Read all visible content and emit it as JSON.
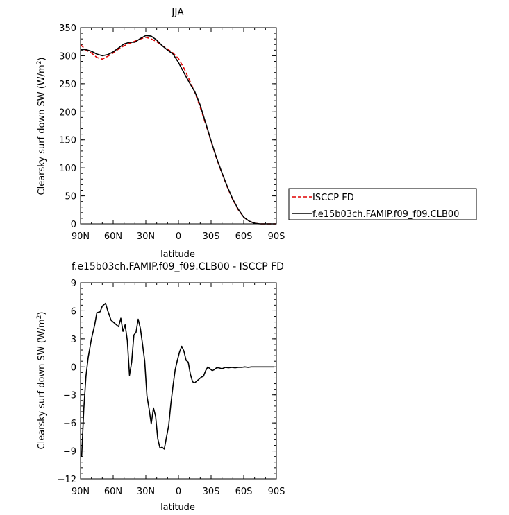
{
  "chart_data": [
    {
      "type": "line",
      "title": "JJA",
      "xlabel": "latitude",
      "ylabel": "Clearsky surf down SW (W/m",
      "ylabel_sup": "2",
      "ylabel_end": ")",
      "xlim": [
        90,
        -90
      ],
      "ylim": [
        0,
        350
      ],
      "xticks": [
        90,
        60,
        30,
        0,
        -30,
        -60,
        -90
      ],
      "xtick_labels": [
        "90N",
        "60N",
        "30N",
        "0",
        "30S",
        "60S",
        "90S"
      ],
      "yticks": [
        0,
        50,
        100,
        150,
        200,
        250,
        300,
        350
      ],
      "ytick_labels": [
        "0",
        "50",
        "100",
        "150",
        "200",
        "250",
        "300",
        "350"
      ],
      "legend_position": "right",
      "series": [
        {
          "name": "ISCCP FD",
          "color": "#e00000",
          "dash": "dashed",
          "x": [
            90,
            85,
            80,
            75,
            70,
            65,
            60,
            55,
            50,
            45,
            40,
            35,
            30,
            25,
            20,
            15,
            10,
            5,
            0,
            -5,
            -10,
            -15,
            -20,
            -25,
            -30,
            -35,
            -40,
            -45,
            -50,
            -55,
            -60,
            -65,
            -70,
            -75,
            -80,
            -85,
            -90
          ],
          "values": [
            320,
            310,
            305,
            297,
            294,
            299,
            305,
            312,
            318,
            322,
            326,
            330,
            333,
            330,
            325,
            318,
            312,
            305,
            295,
            278,
            257,
            235,
            208,
            178,
            147,
            117,
            90,
            65,
            43,
            25,
            12,
            5,
            1,
            0,
            0,
            0,
            0
          ]
        },
        {
          "name": "f.e15b03ch.FAMIP.f09_f09.CLB00",
          "color": "#000000",
          "dash": "solid",
          "x": [
            90,
            85,
            80,
            75,
            70,
            65,
            60,
            55,
            50,
            45,
            40,
            35,
            30,
            25,
            20,
            15,
            10,
            5,
            0,
            -5,
            -10,
            -15,
            -20,
            -25,
            -30,
            -35,
            -40,
            -45,
            -50,
            -55,
            -60,
            -65,
            -70,
            -75,
            -80,
            -85,
            -90
          ],
          "values": [
            311,
            311,
            308,
            303,
            300,
            302,
            307,
            314,
            321,
            324,
            324,
            331,
            336,
            335,
            328,
            318,
            310,
            303,
            288,
            270,
            252,
            236,
            212,
            180,
            148,
            118,
            91,
            66,
            44,
            26,
            12,
            5,
            1,
            0,
            0,
            0,
            0
          ]
        }
      ]
    },
    {
      "type": "line",
      "title": "f.e15b03ch.FAMIP.f09_f09.CLB00 - ISCCP FD",
      "xlabel": "latitude",
      "ylabel": "Clearsky surf down SW (W/m",
      "ylabel_sup": "2",
      "ylabel_end": ")",
      "xlim": [
        90,
        -90
      ],
      "ylim": [
        -12,
        9
      ],
      "xticks": [
        90,
        60,
        30,
        0,
        -30,
        -60,
        -90
      ],
      "xtick_labels": [
        "90N",
        "60N",
        "30N",
        "0",
        "30S",
        "60S",
        "90S"
      ],
      "yticks": [
        9,
        6,
        3,
        0,
        -3,
        -6,
        -9,
        -12
      ],
      "ytick_labels": [
        "9",
        "6",
        "3",
        "0",
        "−3",
        "−6",
        "−9",
        "−12"
      ],
      "series": [
        {
          "color": "#000000",
          "x": [
            89,
            87,
            85,
            83,
            80,
            77,
            75,
            72,
            70,
            67,
            65,
            62,
            60,
            57,
            55,
            53,
            51,
            49,
            47,
            45,
            43,
            41,
            39,
            37,
            35,
            33,
            31,
            29,
            27,
            25,
            23,
            21,
            19,
            17,
            15,
            13,
            11,
            9,
            7,
            5,
            3,
            1,
            -1,
            -3,
            -5,
            -7,
            -9,
            -11,
            -13,
            -15,
            -17,
            -19,
            -21,
            -23,
            -25,
            -27,
            -29,
            -31,
            -33,
            -35,
            -37,
            -40,
            -43,
            -46,
            -49,
            -52,
            -55,
            -58,
            -61,
            -64,
            -67,
            -70,
            -73,
            -76,
            -79,
            -82,
            -85,
            -88
          ],
          "values": [
            -9.6,
            -4.5,
            -1.0,
            1.0,
            3.0,
            4.5,
            5.8,
            5.9,
            6.5,
            6.8,
            6.0,
            5.0,
            4.8,
            4.5,
            4.3,
            5.2,
            3.8,
            4.5,
            2.8,
            -0.9,
            0.5,
            3.4,
            3.7,
            5.1,
            4.1,
            2.4,
            0.6,
            -3.1,
            -4.5,
            -6.1,
            -4.4,
            -5.3,
            -7.7,
            -8.7,
            -8.6,
            -8.8,
            -7.5,
            -6.3,
            -4.0,
            -2.0,
            -0.3,
            0.7,
            1.6,
            2.2,
            1.7,
            0.7,
            0.5,
            -0.8,
            -1.6,
            -1.7,
            -1.5,
            -1.3,
            -1.1,
            -1.0,
            -0.4,
            0.0,
            -0.2,
            -0.4,
            -0.3,
            -0.1,
            -0.1,
            -0.2,
            -0.05,
            -0.1,
            -0.05,
            -0.1,
            -0.05,
            -0.05,
            0.0,
            -0.05,
            0.0,
            0.0,
            0.0,
            0.0,
            0.0,
            0.0,
            0.0,
            0.0
          ]
        }
      ]
    }
  ]
}
